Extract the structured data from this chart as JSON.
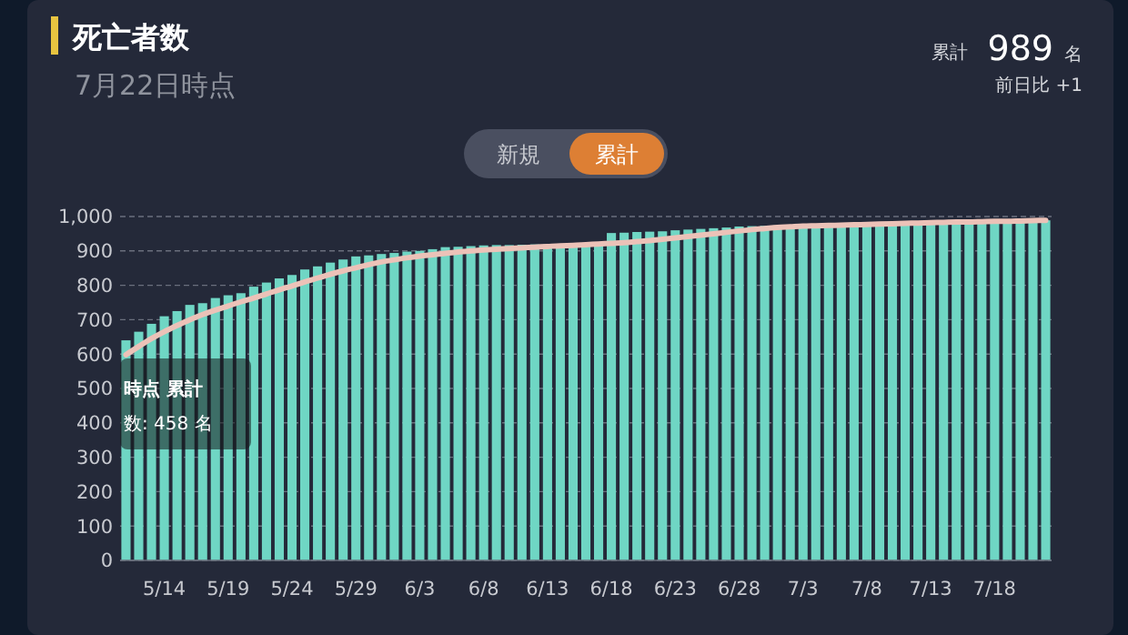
{
  "chart_data": {
    "type": "bar",
    "title": "死亡者数",
    "subtitle": "7月22日時点",
    "annotations": [
      "累計",
      "989",
      "名",
      "前日比 +1",
      "新規",
      "累計",
      "時点 累計",
      "数: 458 名"
    ],
    "categories": [
      null,
      null,
      null,
      "5/14",
      null,
      null,
      null,
      null,
      "5/19",
      null,
      null,
      null,
      null,
      "5/24",
      null,
      null,
      null,
      null,
      "5/29",
      null,
      null,
      null,
      null,
      "6/3",
      null,
      null,
      null,
      null,
      "6/8",
      null,
      null,
      null,
      null,
      "6/13",
      null,
      null,
      null,
      null,
      "6/18",
      null,
      null,
      null,
      null,
      "6/23",
      null,
      null,
      null,
      null,
      "6/28",
      null,
      null,
      null,
      null,
      "7/3",
      null,
      null,
      null,
      null,
      "7/8",
      null,
      null,
      null,
      null,
      "7/13",
      null,
      null,
      null,
      null,
      "7/18",
      null,
      null,
      null,
      null
    ],
    "series": [
      {
        "color": "#6fd6c4",
        "values": [
          640,
          665,
          688,
          710,
          725,
          743,
          748,
          763,
          771,
          777,
          796,
          808,
          820,
          830,
          846,
          855,
          866,
          875,
          884,
          887,
          891,
          894,
          898,
          900,
          905,
          911,
          912,
          914,
          916,
          917,
          917,
          918,
          919,
          919,
          920,
          920,
          922,
          922,
          952,
          953,
          955,
          956,
          957,
          960,
          962,
          964,
          966,
          968,
          971,
          972,
          973,
          974,
          975,
          976,
          977,
          977,
          978,
          979,
          980,
          981,
          981,
          982,
          982,
          983,
          984,
          984,
          985,
          985,
          986,
          986,
          987,
          988,
          989
        ]
      },
      {
        "type": "line",
        "color": "#ecc2b8",
        "marker": "none",
        "values": [
          598,
          622,
          645,
          665,
          683,
          700,
          715,
          728,
          740,
          752,
          763,
          775,
          787,
          798,
          810,
          821,
          832,
          842,
          851,
          860,
          868,
          874,
          880,
          885,
          889,
          893,
          897,
          900,
          903,
          905,
          907,
          909,
          911,
          913,
          915,
          916,
          918,
          920,
          922,
          924,
          927,
          930,
          934,
          938,
          942,
          946,
          950,
          954,
          958,
          962,
          965,
          968,
          970,
          972,
          973,
          974,
          975,
          976,
          977,
          978,
          979,
          980,
          981,
          982,
          983,
          984,
          984,
          985,
          986,
          986,
          987,
          988,
          989
        ]
      }
    ],
    "ylim": [
      0,
      1000
    ],
    "yticks": [
      0,
      100,
      200,
      300,
      400,
      500,
      600,
      700,
      800,
      900,
      {
        "value": 1000,
        "label": "1,000"
      }
    ],
    "grid": "y"
  }
}
